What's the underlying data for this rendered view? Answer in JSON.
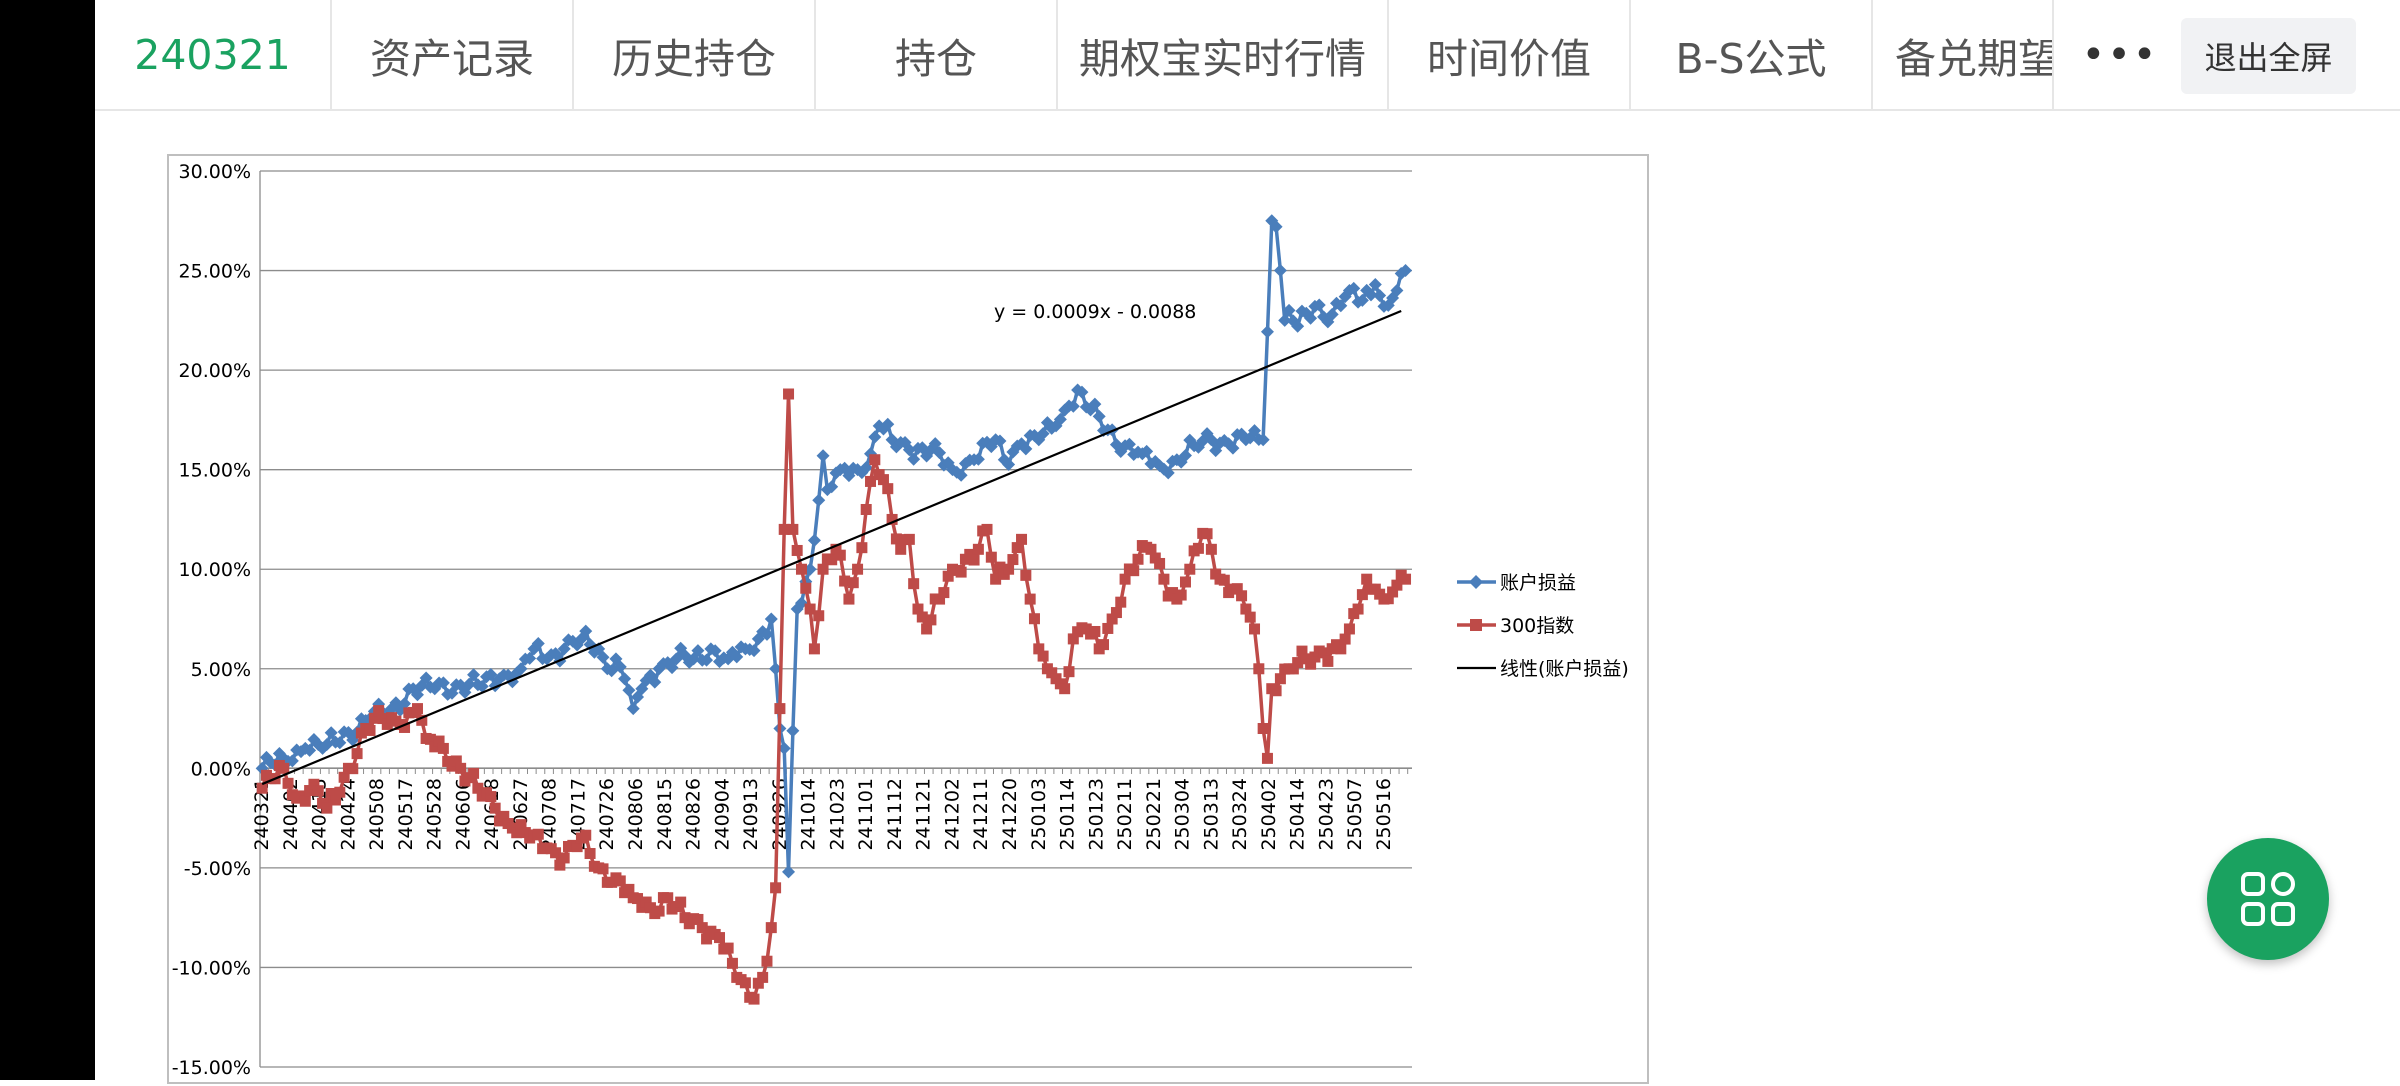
{
  "tabs": [
    {
      "label": "240321",
      "active": true
    },
    {
      "label": "资产记录",
      "active": false
    },
    {
      "label": "历史持仓",
      "active": false
    },
    {
      "label": "持仓",
      "active": false
    },
    {
      "label": "期权宝实时行情",
      "active": false
    },
    {
      "label": "时间价值",
      "active": false
    },
    {
      "label": "B-S公式",
      "active": false
    },
    {
      "label": "备兑期望",
      "active": false
    }
  ],
  "toolbar": {
    "more_label": "•••",
    "exit_fullscreen_label": "退出全屏"
  },
  "fab": {
    "icon": "grid-apps-icon"
  },
  "colors": {
    "accent": "#1aa260",
    "series_account": "#4a7ebb",
    "series_index": "#be4b48",
    "trendline": "#000000"
  },
  "chart_data": {
    "type": "line",
    "title": "",
    "xlabel": "",
    "ylabel": "",
    "ylim": [
      -0.15,
      0.3
    ],
    "y_ticks": [
      "30.00%",
      "25.00%",
      "20.00%",
      "15.00%",
      "10.00%",
      "5.00%",
      "0.00%",
      "-5.00%",
      "-10.00%",
      "-15.00%"
    ],
    "x_tick_labels": [
      "240321",
      "240402",
      "240415",
      "240424",
      "240508",
      "240517",
      "240528",
      "240606",
      "240618",
      "240627",
      "240708",
      "240717",
      "240726",
      "240806",
      "240815",
      "240826",
      "240904",
      "240913",
      "240926",
      "241014",
      "241023",
      "241101",
      "241112",
      "241121",
      "241202",
      "241211",
      "241220",
      "250103",
      "250114",
      "250123",
      "250211",
      "250221",
      "250304",
      "250313",
      "250324",
      "250402",
      "250414",
      "250423",
      "250507",
      "250516"
    ],
    "grid": true,
    "legend_position": "right",
    "trendline_equation": "y = 0.0009x - 0.0088",
    "series": [
      {
        "name": "账户损益",
        "color": "#4a7ebb",
        "marker": "diamond",
        "keypoints": [
          [
            0,
            0.0
          ],
          [
            5,
            0.005
          ],
          [
            10,
            0.01
          ],
          [
            15,
            0.012
          ],
          [
            20,
            0.018
          ],
          [
            25,
            0.025
          ],
          [
            30,
            0.03
          ],
          [
            35,
            0.04
          ],
          [
            40,
            0.04
          ],
          [
            45,
            0.042
          ],
          [
            50,
            0.042
          ],
          [
            55,
            0.045
          ],
          [
            60,
            0.05
          ],
          [
            63,
            0.06
          ],
          [
            66,
            0.055
          ],
          [
            70,
            0.06
          ],
          [
            74,
            0.065
          ],
          [
            78,
            0.06
          ],
          [
            80,
            0.05
          ],
          [
            82,
            0.055
          ],
          [
            84,
            0.045
          ],
          [
            86,
            0.03
          ],
          [
            88,
            0.04
          ],
          [
            92,
            0.05
          ],
          [
            96,
            0.055
          ],
          [
            100,
            0.055
          ],
          [
            104,
            0.06
          ],
          [
            108,
            0.055
          ],
          [
            112,
            0.06
          ],
          [
            115,
            0.065
          ],
          [
            118,
            0.075
          ],
          [
            119,
            0.05
          ],
          [
            120,
            0.02
          ],
          [
            121,
            0.01
          ],
          [
            122,
            -0.052
          ],
          [
            124,
            0.08
          ],
          [
            127,
            0.1
          ],
          [
            130,
            0.157
          ],
          [
            131,
            0.14
          ],
          [
            134,
            0.15
          ],
          [
            138,
            0.15
          ],
          [
            141,
            0.158
          ],
          [
            143,
            0.172
          ],
          [
            146,
            0.165
          ],
          [
            150,
            0.16
          ],
          [
            155,
            0.16
          ],
          [
            160,
            0.15
          ],
          [
            165,
            0.155
          ],
          [
            170,
            0.165
          ],
          [
            172,
            0.155
          ],
          [
            176,
            0.163
          ],
          [
            180,
            0.165
          ],
          [
            184,
            0.172
          ],
          [
            187,
            0.182
          ],
          [
            189,
            0.19
          ],
          [
            192,
            0.18
          ],
          [
            196,
            0.17
          ],
          [
            200,
            0.162
          ],
          [
            204,
            0.158
          ],
          [
            208,
            0.152
          ],
          [
            212,
            0.155
          ],
          [
            216,
            0.162
          ],
          [
            220,
            0.165
          ],
          [
            224,
            0.163
          ],
          [
            228,
            0.165
          ],
          [
            232,
            0.165
          ],
          [
            234,
            0.275
          ],
          [
            235,
            0.272
          ],
          [
            236,
            0.25
          ],
          [
            237,
            0.225
          ],
          [
            238,
            0.23
          ],
          [
            240,
            0.222
          ],
          [
            244,
            0.232
          ],
          [
            248,
            0.228
          ],
          [
            252,
            0.24
          ],
          [
            255,
            0.235
          ],
          [
            258,
            0.243
          ],
          [
            260,
            0.232
          ],
          [
            263,
            0.24
          ],
          [
            265,
            0.25
          ]
        ]
      },
      {
        "name": "300指数",
        "color": "#be4b48",
        "marker": "square",
        "keypoints": [
          [
            0,
            -0.01
          ],
          [
            5,
            0.0
          ],
          [
            8,
            -0.015
          ],
          [
            12,
            -0.008
          ],
          [
            15,
            -0.02
          ],
          [
            18,
            -0.012
          ],
          [
            20,
            0.0
          ],
          [
            24,
            0.02
          ],
          [
            28,
            0.025
          ],
          [
            32,
            0.022
          ],
          [
            36,
            0.03
          ],
          [
            38,
            0.015
          ],
          [
            42,
            0.01
          ],
          [
            46,
            0.0
          ],
          [
            50,
            -0.01
          ],
          [
            54,
            -0.02
          ],
          [
            58,
            -0.03
          ],
          [
            62,
            -0.035
          ],
          [
            66,
            -0.04
          ],
          [
            70,
            -0.045
          ],
          [
            74,
            -0.035
          ],
          [
            78,
            -0.05
          ],
          [
            82,
            -0.055
          ],
          [
            86,
            -0.065
          ],
          [
            90,
            -0.07
          ],
          [
            94,
            -0.065
          ],
          [
            98,
            -0.075
          ],
          [
            102,
            -0.08
          ],
          [
            106,
            -0.085
          ],
          [
            110,
            -0.105
          ],
          [
            113,
            -0.115
          ],
          [
            116,
            -0.105
          ],
          [
            118,
            -0.08
          ],
          [
            119,
            -0.06
          ],
          [
            120,
            0.03
          ],
          [
            121,
            0.12
          ],
          [
            122,
            0.188
          ],
          [
            123,
            0.12
          ],
          [
            125,
            0.1
          ],
          [
            127,
            0.08
          ],
          [
            128,
            0.06
          ],
          [
            130,
            0.1
          ],
          [
            133,
            0.11
          ],
          [
            136,
            0.085
          ],
          [
            138,
            0.1
          ],
          [
            140,
            0.13
          ],
          [
            142,
            0.155
          ],
          [
            144,
            0.145
          ],
          [
            146,
            0.125
          ],
          [
            148,
            0.11
          ],
          [
            150,
            0.115
          ],
          [
            152,
            0.08
          ],
          [
            154,
            0.07
          ],
          [
            157,
            0.085
          ],
          [
            160,
            0.1
          ],
          [
            163,
            0.105
          ],
          [
            166,
            0.11
          ],
          [
            168,
            0.12
          ],
          [
            170,
            0.095
          ],
          [
            173,
            0.1
          ],
          [
            176,
            0.115
          ],
          [
            178,
            0.085
          ],
          [
            180,
            0.06
          ],
          [
            182,
            0.05
          ],
          [
            184,
            0.045
          ],
          [
            186,
            0.04
          ],
          [
            188,
            0.065
          ],
          [
            191,
            0.07
          ],
          [
            194,
            0.06
          ],
          [
            197,
            0.075
          ],
          [
            200,
            0.095
          ],
          [
            203,
            0.105
          ],
          [
            206,
            0.11
          ],
          [
            209,
            0.095
          ],
          [
            212,
            0.085
          ],
          [
            215,
            0.1
          ],
          [
            218,
            0.118
          ],
          [
            220,
            0.11
          ],
          [
            222,
            0.095
          ],
          [
            225,
            0.09
          ],
          [
            228,
            0.08
          ],
          [
            230,
            0.07
          ],
          [
            231,
            0.05
          ],
          [
            232,
            0.02
          ],
          [
            233,
            0.005
          ],
          [
            234,
            0.04
          ],
          [
            236,
            0.045
          ],
          [
            238,
            0.05
          ],
          [
            242,
            0.055
          ],
          [
            246,
            0.058
          ],
          [
            250,
            0.06
          ],
          [
            252,
            0.07
          ],
          [
            254,
            0.08
          ],
          [
            256,
            0.095
          ],
          [
            258,
            0.09
          ],
          [
            260,
            0.085
          ],
          [
            263,
            0.092
          ],
          [
            265,
            0.095
          ]
        ]
      }
    ],
    "trendline": {
      "name": "线性(账户损益)",
      "color": "#000000",
      "slope": 0.0009,
      "intercept": -0.0088,
      "x_range": [
        1,
        265
      ]
    }
  }
}
